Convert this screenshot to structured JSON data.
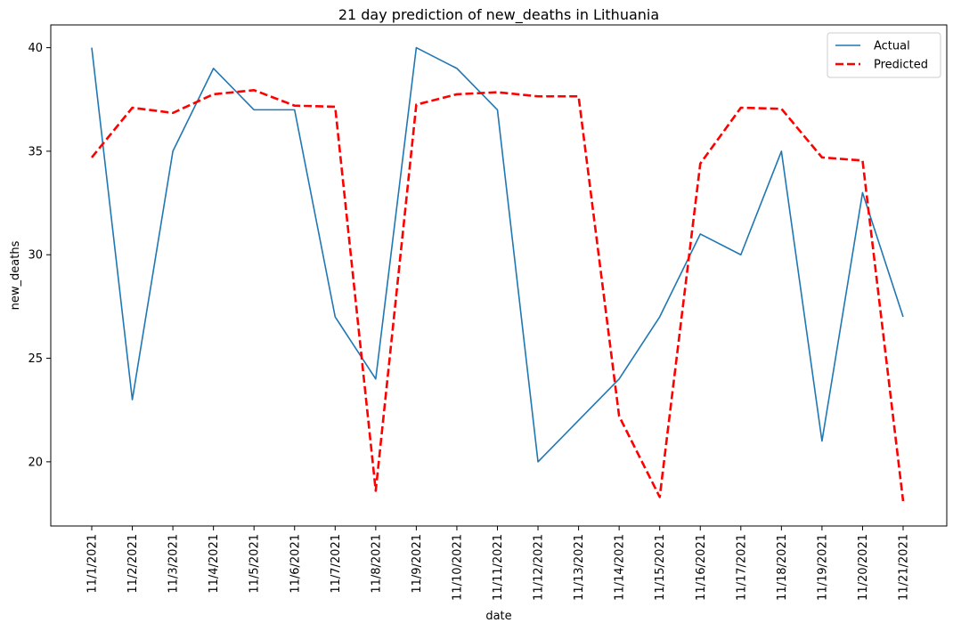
{
  "chart_data": {
    "type": "line",
    "title": "21 day prediction of new_deaths in Lithuania",
    "xlabel": "date",
    "ylabel": "new_deaths",
    "ylim": [
      16.9,
      41.1
    ],
    "yticks": [
      20,
      25,
      30,
      35,
      40
    ],
    "legend_position": "top-right",
    "grid": false,
    "categories": [
      "11/1/2021",
      "11/2/2021",
      "11/3/2021",
      "11/4/2021",
      "11/5/2021",
      "11/6/2021",
      "11/7/2021",
      "11/8/2021",
      "11/9/2021",
      "11/10/2021",
      "11/11/2021",
      "11/12/2021",
      "11/13/2021",
      "11/14/2021",
      "11/15/2021",
      "11/16/2021",
      "11/17/2021",
      "11/18/2021",
      "11/19/2021",
      "11/20/2021",
      "11/21/2021"
    ],
    "series": [
      {
        "name": "Actual",
        "color": "#1f77b4",
        "dash": "solid",
        "values": [
          40,
          23,
          35,
          39,
          37,
          37,
          27,
          24,
          40,
          39,
          37,
          20,
          22,
          24,
          27,
          31,
          30,
          35,
          21,
          33,
          27
        ]
      },
      {
        "name": "Predicted",
        "color": "#ff0000",
        "dash": "dashed",
        "values": [
          34.7,
          37.1,
          36.85,
          37.75,
          37.95,
          37.2,
          37.15,
          18.6,
          37.25,
          37.75,
          37.85,
          37.65,
          37.65,
          22.2,
          18.3,
          34.4,
          37.1,
          37.05,
          34.7,
          34.55,
          18.1
        ]
      }
    ]
  }
}
